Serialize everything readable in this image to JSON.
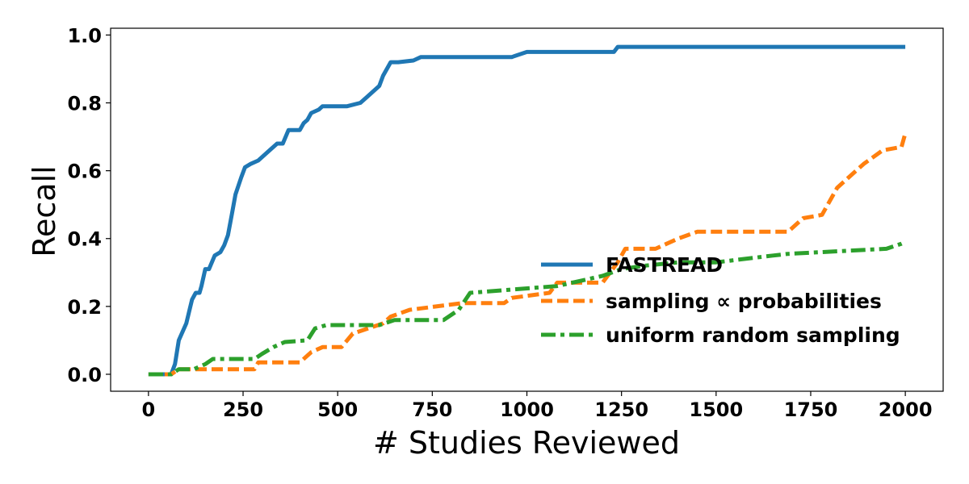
{
  "chart_data": {
    "type": "line",
    "title": "",
    "xlabel": "# Studies Reviewed",
    "ylabel": "Recall",
    "xlim": [
      -100,
      2100
    ],
    "ylim": [
      -0.05,
      1.02
    ],
    "xticks": [
      0,
      250,
      500,
      750,
      1000,
      1250,
      1500,
      1750,
      2000
    ],
    "yticks": [
      0.0,
      0.2,
      0.4,
      0.6,
      0.8,
      1.0
    ],
    "xtick_labels": [
      "0",
      "250",
      "500",
      "750",
      "1000",
      "1250",
      "1500",
      "1750",
      "2000"
    ],
    "ytick_labels": [
      "0.0",
      "0.2",
      "0.4",
      "0.6",
      "0.8",
      "1.0"
    ],
    "grid": false,
    "legend_position": "center-right",
    "series": [
      {
        "name": "FASTREAD",
        "color": "#1f77b4",
        "style": "solid",
        "x": [
          0,
          60,
          70,
          80,
          100,
          115,
          125,
          135,
          140,
          150,
          160,
          175,
          190,
          200,
          210,
          220,
          230,
          245,
          255,
          270,
          290,
          300,
          320,
          340,
          355,
          370,
          400,
          410,
          420,
          430,
          450,
          460,
          480,
          500,
          525,
          560,
          580,
          590,
          610,
          620,
          640,
          660,
          700,
          720,
          960,
          1000,
          1230,
          1240,
          2000
        ],
        "y": [
          0.0,
          0.0,
          0.03,
          0.1,
          0.15,
          0.22,
          0.24,
          0.24,
          0.26,
          0.31,
          0.31,
          0.35,
          0.36,
          0.38,
          0.41,
          0.47,
          0.53,
          0.58,
          0.61,
          0.62,
          0.63,
          0.64,
          0.66,
          0.68,
          0.68,
          0.72,
          0.72,
          0.74,
          0.75,
          0.77,
          0.78,
          0.79,
          0.79,
          0.79,
          0.79,
          0.8,
          0.82,
          0.83,
          0.85,
          0.88,
          0.92,
          0.92,
          0.925,
          0.935,
          0.935,
          0.95,
          0.95,
          0.965,
          0.965
        ]
      },
      {
        "name": "sampling ∝ probabilities",
        "color": "#ff7f0e",
        "style": "dashed",
        "x": [
          0,
          60,
          80,
          100,
          280,
          290,
          400,
          430,
          460,
          510,
          540,
          620,
          640,
          690,
          760,
          830,
          940,
          960,
          1060,
          1080,
          1200,
          1240,
          1260,
          1340,
          1400,
          1450,
          1690,
          1730,
          1780,
          1820,
          1830,
          1870,
          1890,
          1940,
          1990,
          2000
        ],
        "y": [
          0.0,
          0.0,
          0.015,
          0.015,
          0.015,
          0.035,
          0.035,
          0.065,
          0.08,
          0.08,
          0.12,
          0.15,
          0.17,
          0.19,
          0.2,
          0.21,
          0.21,
          0.225,
          0.24,
          0.27,
          0.27,
          0.33,
          0.37,
          0.37,
          0.4,
          0.42,
          0.42,
          0.46,
          0.47,
          0.55,
          0.56,
          0.6,
          0.62,
          0.66,
          0.67,
          0.71
        ]
      },
      {
        "name": "uniform random sampling",
        "color": "#2ca02c",
        "style": "dashdot",
        "x": [
          0,
          60,
          80,
          120,
          150,
          170,
          280,
          300,
          330,
          360,
          420,
          440,
          470,
          610,
          650,
          780,
          820,
          850,
          1080,
          1200,
          1250,
          1310,
          1400,
          1500,
          1650,
          1690,
          1950,
          1990,
          2000
        ],
        "y": [
          0.0,
          0.0,
          0.015,
          0.015,
          0.03,
          0.045,
          0.045,
          0.06,
          0.08,
          0.095,
          0.1,
          0.135,
          0.145,
          0.145,
          0.16,
          0.16,
          0.19,
          0.24,
          0.26,
          0.29,
          0.31,
          0.32,
          0.33,
          0.33,
          0.35,
          0.355,
          0.37,
          0.385,
          0.39
        ]
      }
    ]
  }
}
